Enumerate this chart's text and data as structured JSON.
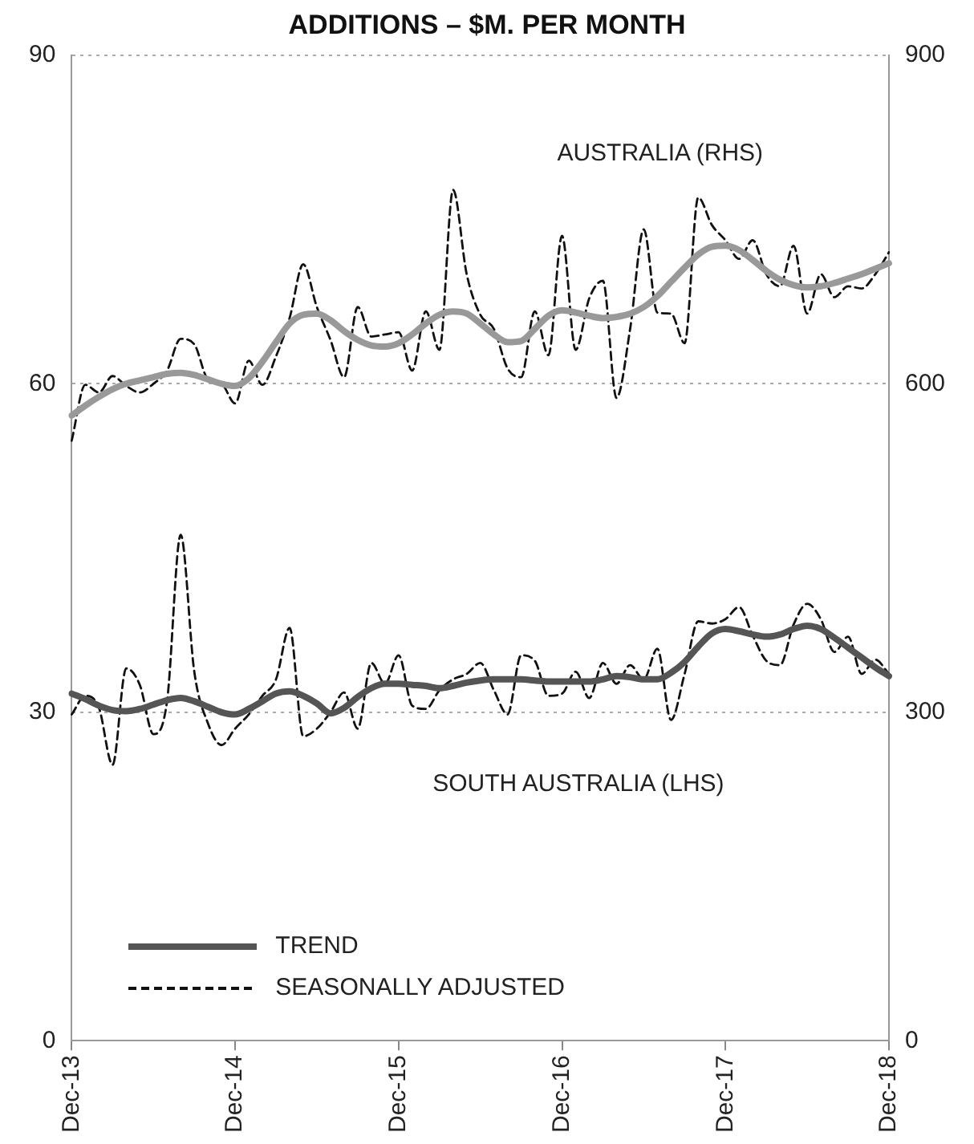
{
  "chart_data": {
    "type": "line",
    "title": "ADDITIONS – $M. PER MONTH",
    "categories": [
      "Dec-13",
      null,
      null,
      null,
      null,
      null,
      null,
      null,
      null,
      null,
      null,
      null,
      "Dec-14",
      null,
      null,
      null,
      null,
      null,
      null,
      null,
      null,
      null,
      null,
      null,
      "Dec-15",
      null,
      null,
      null,
      null,
      null,
      null,
      null,
      null,
      null,
      null,
      null,
      "Dec-16",
      null,
      null,
      null,
      null,
      null,
      null,
      null,
      null,
      null,
      null,
      null,
      "Dec-17",
      null,
      null,
      null,
      null,
      null,
      null,
      null,
      null,
      null,
      null,
      null,
      "Dec-18"
    ],
    "series": [
      {
        "color": "#999999",
        "axis": "y2",
        "line_style": "solid",
        "values": [
          571,
          580,
          588,
          595,
          600,
          603,
          606,
          609,
          610,
          608,
          604,
          600,
          598,
          605,
          620,
          638,
          655,
          663,
          664,
          658,
          648,
          640,
          635,
          634,
          637,
          645,
          655,
          663,
          666,
          664,
          655,
          645,
          638,
          639,
          650,
          662,
          667,
          665,
          662,
          660,
          661,
          664,
          670,
          680,
          693,
          706,
          718,
          725,
          726,
          722,
          713,
          703,
          695,
          690,
          688,
          689,
          692,
          696,
          700,
          705,
          710
        ]
      },
      {
        "color": "#111111",
        "axis": "y2",
        "line_style": "dashed",
        "values": [
          548,
          599,
          592,
          607,
          598,
          592,
          600,
          612,
          641,
          636,
          604,
          600,
          582,
          621,
          599,
          625,
          660,
          709,
          670,
          640,
          606,
          670,
          643,
          645,
          647,
          612,
          666,
          631,
          777,
          700,
          663,
          650,
          614,
          606,
          666,
          626,
          735,
          631,
          678,
          694,
          587,
          650,
          741,
          665,
          664,
          637,
          770,
          745,
          731,
          714,
          731,
          700,
          689,
          726,
          664,
          700,
          679,
          689,
          687,
          700,
          720
        ]
      },
      {
        "name": "TREND",
        "color": "#555555",
        "axis": "y",
        "line_style": "solid",
        "values": [
          31.7,
          31.2,
          30.6,
          30.2,
          30.1,
          30.3,
          30.7,
          31.1,
          31.3,
          31.0,
          30.5,
          30.0,
          29.8,
          30.3,
          31.0,
          31.7,
          31.9,
          31.5,
          30.8,
          29.9,
          30.4,
          31.4,
          32.2,
          32.6,
          32.6,
          32.5,
          32.4,
          32.2,
          32.4,
          32.7,
          32.9,
          33.0,
          33.0,
          33.0,
          32.9,
          32.8,
          32.8,
          32.8,
          32.8,
          33.0,
          33.3,
          33.2,
          33.0,
          33.0,
          33.6,
          34.6,
          36.0,
          37.2,
          37.6,
          37.4,
          37.1,
          36.9,
          37.1,
          37.6,
          37.9,
          37.6,
          36.8,
          35.9,
          35.0,
          34.1,
          33.3
        ]
      },
      {
        "name": "SEASONALLY ADJUSTED",
        "color": "#111111",
        "axis": "y",
        "line_style": "dashed",
        "values": [
          29.8,
          31.5,
          30.4,
          25.2,
          34.0,
          32.5,
          28.0,
          31.0,
          46.2,
          33.7,
          29.0,
          27.0,
          28.5,
          29.8,
          31.5,
          33.0,
          37.7,
          27.8,
          28.5,
          30.0,
          31.8,
          28.5,
          34.5,
          32.6,
          35.2,
          30.6,
          30.3,
          32.0,
          33.0,
          33.5,
          34.5,
          32.0,
          29.8,
          35.2,
          34.7,
          31.5,
          31.7,
          33.7,
          31.3,
          34.5,
          32.6,
          34.3,
          33.0,
          35.8,
          29.3,
          33.5,
          38.3,
          38.1,
          38.5,
          39.6,
          37.0,
          34.7,
          34.3,
          38.0,
          39.9,
          38.5,
          35.5,
          36.9,
          33.5,
          34.8,
          33.5
        ]
      }
    ],
    "ylim": [
      0,
      90
    ],
    "yticks": [
      0,
      30,
      60,
      90
    ],
    "y2lim": [
      0,
      900
    ],
    "y2ticks": [
      0,
      300,
      600,
      900
    ],
    "grid": "y",
    "legend": "bottom left",
    "annotations": [
      "AUSTRALIA (RHS)",
      "SOUTH AUSTRALIA (LHS)"
    ]
  }
}
